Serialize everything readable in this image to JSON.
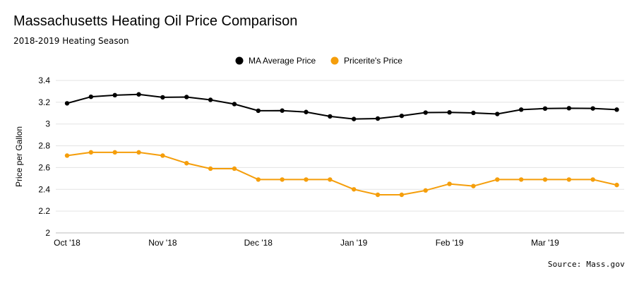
{
  "chart_data": {
    "type": "line",
    "title": "Massachusetts Heating Oil Price Comparison",
    "subtitle": "2018-2019 Heating Season",
    "ylabel": "Price per Gallon",
    "xlabel": "",
    "ylim": [
      2,
      3.4
    ],
    "yticks": [
      "2",
      "2.2",
      "2.4",
      "2.6",
      "2.8",
      "3",
      "3.2",
      "3.4"
    ],
    "xtick_labels": [
      "Oct '18",
      "Nov '18",
      "Dec '18",
      "Jan '19",
      "Feb '19",
      "Mar '19"
    ],
    "xtick_indices": [
      0,
      4,
      8,
      12,
      16,
      20
    ],
    "grid": true,
    "legend_position": "top-center",
    "source": "Source: Mass.gov",
    "series": [
      {
        "name": "MA Average Price",
        "color": "#000000",
        "values": [
          3.19,
          3.25,
          3.265,
          3.272,
          3.245,
          3.248,
          3.222,
          3.183,
          3.122,
          3.123,
          3.11,
          3.07,
          3.046,
          3.05,
          3.075,
          3.105,
          3.107,
          3.102,
          3.092,
          3.132,
          3.142,
          3.145,
          3.143,
          3.132
        ]
      },
      {
        "name": "Pricerite's Price",
        "color": "#F59E0B",
        "values": [
          2.71,
          2.74,
          2.74,
          2.74,
          2.71,
          2.64,
          2.59,
          2.59,
          2.49,
          2.49,
          2.49,
          2.49,
          2.4,
          2.35,
          2.35,
          2.39,
          2.45,
          2.43,
          2.49,
          2.49,
          2.49,
          2.49,
          2.49,
          2.44
        ]
      }
    ]
  }
}
